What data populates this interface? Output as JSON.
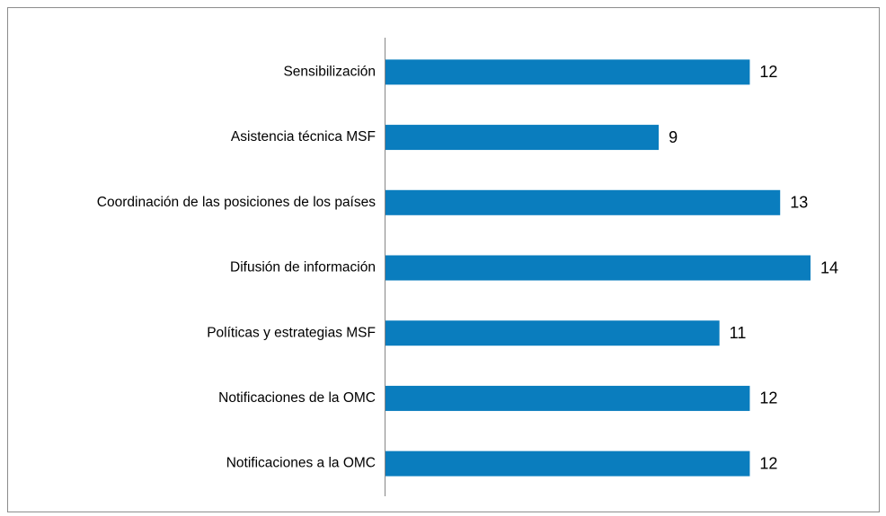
{
  "chart_data": {
    "type": "bar",
    "orientation": "horizontal",
    "categories": [
      "Sensibilización",
      "Asistencia técnica MSF",
      "Coordinación de las posiciones de los países",
      "Difusión de información",
      "Políticas y estrategias MSF",
      "Notificaciones de la OMC",
      "Notificaciones a la OMC"
    ],
    "values": [
      12,
      9,
      13,
      14,
      11,
      12,
      12
    ],
    "color": "#0a7dbe"
  }
}
